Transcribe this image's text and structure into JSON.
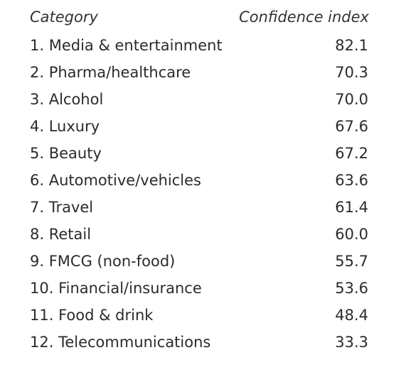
{
  "chart_data": {
    "type": "table",
    "columns": [
      "Category",
      "Confidence index"
    ],
    "rows": [
      {
        "category": "1. Media & entertainment",
        "value": "82.1"
      },
      {
        "category": "2. Pharma/healthcare",
        "value": "70.3"
      },
      {
        "category": "3. Alcohol",
        "value": "70.0"
      },
      {
        "category": "4. Luxury",
        "value": "67.6"
      },
      {
        "category": "5. Beauty",
        "value": "67.2"
      },
      {
        "category": "6. Automotive/vehicles",
        "value": "63.6"
      },
      {
        "category": "7. Travel",
        "value": "61.4"
      },
      {
        "category": "8. Retail",
        "value": "60.0"
      },
      {
        "category": "9. FMCG (non-food)",
        "value": "55.7"
      },
      {
        "category": "10. Financial/insurance",
        "value": "53.6"
      },
      {
        "category": "11. Food & drink",
        "value": "48.4"
      },
      {
        "category": "12. Telecommunications",
        "value": "33.3"
      }
    ]
  }
}
